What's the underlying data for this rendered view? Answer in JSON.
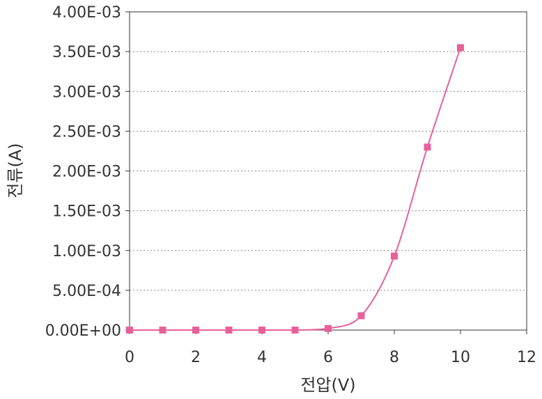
{
  "chart_data": {
    "type": "line",
    "xlabel": "전압(V)",
    "ylabel": "전류(A)",
    "xlim": [
      0,
      12
    ],
    "ylim": [
      0,
      0.004
    ],
    "x_ticks": [
      "0",
      "2",
      "4",
      "6",
      "8",
      "10",
      "12"
    ],
    "y_ticks": [
      "0.00E+00",
      "5.00E-04",
      "1.00E-03",
      "1.50E-03",
      "2.00E-03",
      "2.50E-03",
      "3.00E-03",
      "3.50E-03",
      "4.00E-03"
    ],
    "grid": true,
    "series": [
      {
        "color": "#e8609a",
        "marker": "square",
        "x": [
          0,
          1,
          2,
          3,
          4,
          5,
          6,
          7,
          8,
          9,
          10
        ],
        "y": [
          0,
          0,
          0,
          0,
          0,
          0,
          2e-05,
          0.00018,
          0.00093,
          0.0023,
          0.00355
        ]
      }
    ]
  }
}
